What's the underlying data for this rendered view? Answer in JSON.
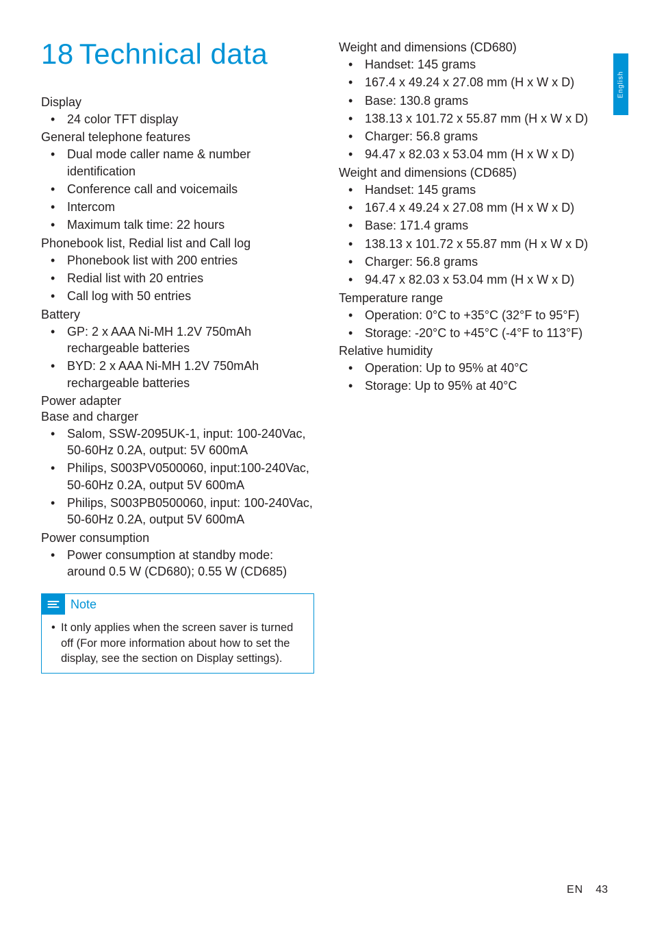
{
  "colors": {
    "accent": "#0093d6",
    "text": "#231f20",
    "bg": "#ffffff"
  },
  "title_num": "18",
  "title_text": "Technical data",
  "side_tab": "English",
  "footer_lang": "EN",
  "footer_page": "43",
  "left": {
    "display_h": "Display",
    "display_items": [
      "24 color TFT display"
    ],
    "general_h": "General telephone features",
    "general_items": [
      "Dual mode caller name & number identification",
      "Conference call and voicemails",
      "Intercom",
      "Maximum talk time: 22 hours"
    ],
    "pb_h": "Phonebook list, Redial list and Call log",
    "pb_items": [
      "Phonebook list with 200 entries",
      "Redial list with 20 entries",
      "Call log with 50 entries"
    ],
    "batt_h": "Battery",
    "batt_items": [
      "GP: 2 x AAA Ni-MH 1.2V 750mAh rechargeable batteries",
      "BYD: 2 x AAA Ni-MH 1.2V 750mAh rechargeable batteries"
    ],
    "pa_h": "Power adapter",
    "pa_sub": "Base and charger",
    "pa_items": [
      "Salom, SSW-2095UK-1, input: 100-240Vac, 50-60Hz 0.2A, output: 5V 600mA",
      "Philips, S003PV0500060, input:100-240Vac, 50-60Hz 0.2A, output 5V 600mA",
      "Philips, S003PB0500060, input: 100-240Vac, 50-60Hz 0.2A, output 5V 600mA"
    ],
    "pc_h": "Power consumption",
    "pc_items": [
      "Power consumption at standby mode: around 0.5 W (CD680); 0.55 W (CD685)"
    ],
    "note_title": "Note",
    "note_items": [
      "It only applies when the screen saver is turned off (For more information about how to set the display, see the section on Display settings)."
    ]
  },
  "right": {
    "wd680_h": "Weight and dimensions (CD680)",
    "wd680_items": [
      "Handset: 145 grams",
      "167.4 x 49.24 x 27.08 mm (H x W x D)",
      "Base: 130.8 grams",
      "138.13 x 101.72 x 55.87 mm (H x W x D)",
      "Charger: 56.8 grams",
      "94.47 x 82.03 x 53.04 mm (H x W x D)"
    ],
    "wd685_h": "Weight and dimensions (CD685)",
    "wd685_items": [
      "Handset: 145 grams",
      "167.4 x 49.24 x 27.08 mm (H x W x D)",
      "Base: 171.4 grams",
      "138.13 x 101.72 x 55.87 mm (H x W x D)",
      "Charger: 56.8 grams",
      "94.47 x 82.03 x 53.04 mm (H x W x D)"
    ],
    "temp_h": "Temperature range",
    "temp_items": [
      "Operation: 0°C to +35°C (32°F to 95°F)",
      "Storage: -20°C to +45°C (-4°F to 113°F)"
    ],
    "rh_h": "Relative humidity",
    "rh_items": [
      "Operation: Up to 95% at 40°C",
      "Storage: Up to 95% at 40°C"
    ]
  }
}
